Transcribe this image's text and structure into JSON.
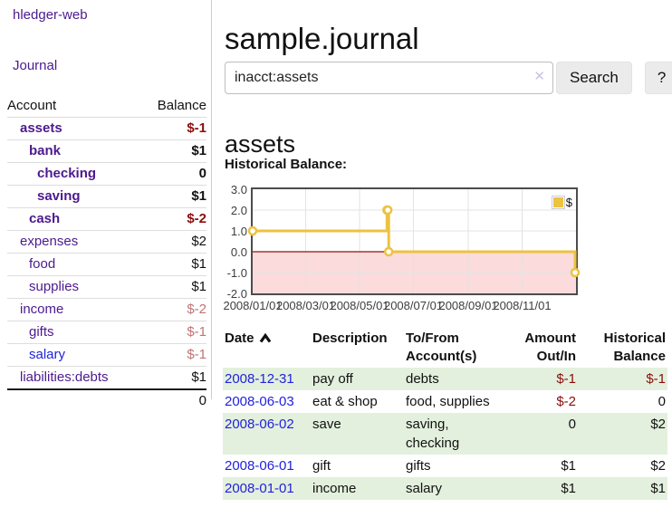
{
  "brand": "hledger-web",
  "nav": {
    "journal": "Journal"
  },
  "sidebar": {
    "header": {
      "account": "Account",
      "balance": "Balance"
    },
    "accounts": [
      {
        "name": "assets",
        "indent": 1,
        "bold": true,
        "balance": "$-1",
        "balClass": "neg"
      },
      {
        "name": "bank",
        "indent": 2,
        "bold": true,
        "balance": "$1",
        "balClass": ""
      },
      {
        "name": "checking",
        "indent": 3,
        "bold": true,
        "balance": "0",
        "balClass": ""
      },
      {
        "name": "saving",
        "indent": 3,
        "bold": true,
        "balance": "$1",
        "balClass": ""
      },
      {
        "name": "cash",
        "indent": 2,
        "bold": true,
        "balance": "$-2",
        "balClass": "neg"
      },
      {
        "name": "expenses",
        "indent": 1,
        "bold": false,
        "balance": "$2",
        "balClass": ""
      },
      {
        "name": "food",
        "indent": 2,
        "bold": false,
        "balance": "$1",
        "balClass": ""
      },
      {
        "name": "supplies",
        "indent": 2,
        "bold": false,
        "balance": "$1",
        "balClass": ""
      },
      {
        "name": "income",
        "indent": 1,
        "bold": false,
        "balance": "$-2",
        "balClass": "neg-soft"
      },
      {
        "name": "gifts",
        "indent": 2,
        "bold": false,
        "balance": "$-1",
        "balClass": "neg-soft"
      },
      {
        "name": "salary",
        "indent": 2,
        "bold": false,
        "balance": "$-1",
        "balClass": "neg-soft",
        "nameClass": "blue"
      },
      {
        "name": "liabilities:debts",
        "indent": 1,
        "bold": false,
        "balance": "$1",
        "balClass": ""
      }
    ],
    "total": "0"
  },
  "main": {
    "title": "sample.journal",
    "search": {
      "value": "inacct:assets",
      "clear": "✕",
      "button": "Search",
      "help": "?"
    },
    "heading": "assets",
    "chart_title": "Historical Balance:"
  },
  "chart_data": {
    "type": "line",
    "step": true,
    "title": "Historical Balance:",
    "legend": [
      {
        "label": "$",
        "color": "#edc240"
      }
    ],
    "legend_position": "top-right",
    "series": [
      {
        "name": "$",
        "color": "#edc240",
        "points": [
          [
            "2008-01-01",
            1
          ],
          [
            "2008-06-01",
            2
          ],
          [
            "2008-06-02",
            2
          ],
          [
            "2008-06-03",
            0
          ],
          [
            "2008-12-31",
            -1
          ]
        ]
      }
    ],
    "xlim": [
      "2008-01-01",
      "2009-01-01"
    ],
    "ylim": [
      -2,
      3
    ],
    "yticks": [
      {
        "value": 3,
        "label": "3.0"
      },
      {
        "value": 2,
        "label": "2.0"
      },
      {
        "value": 1,
        "label": "1.0"
      },
      {
        "value": 0,
        "label": "0.0"
      },
      {
        "value": -1,
        "label": "-1.0"
      },
      {
        "value": -2,
        "label": "-2.0"
      }
    ],
    "xticks": [
      {
        "value": "2008-01-01",
        "label": "2008/01/01"
      },
      {
        "value": "2008-03-01",
        "label": "2008/03/01"
      },
      {
        "value": "2008-05-01",
        "label": "2008/05/01"
      },
      {
        "value": "2008-07-01",
        "label": "2008/07/01"
      },
      {
        "value": "2008-09-01",
        "label": "2008/09/01"
      },
      {
        "value": "2008-11-01",
        "label": "2008/11/01"
      }
    ],
    "grid": true,
    "negative_fill": "#fbdbdb",
    "zero_line_color": "#8e1414"
  },
  "register": {
    "columns": [
      {
        "line1": "Date",
        "line2": ""
      },
      {
        "line1": "Description",
        "line2": ""
      },
      {
        "line1": "To/From",
        "line2": "Account(s)"
      },
      {
        "line1": "Amount",
        "line2": "Out/In"
      },
      {
        "line1": "Historical",
        "line2": "Balance"
      }
    ],
    "rows": [
      {
        "date": "2008-12-31",
        "description": "pay off",
        "accounts": "debts",
        "amount": "$-1",
        "amountClass": "neg",
        "balance": "$-1",
        "balanceClass": "neg"
      },
      {
        "date": "2008-06-03",
        "description": "eat & shop",
        "accounts": "food, supplies",
        "amount": "$-2",
        "amountClass": "neg",
        "balance": "0",
        "balanceClass": ""
      },
      {
        "date": "2008-06-02",
        "description": "save",
        "accounts": "saving, checking",
        "amount": "0",
        "amountClass": "",
        "balance": "$2",
        "balanceClass": ""
      },
      {
        "date": "2008-06-01",
        "description": "gift",
        "accounts": "gifts",
        "amount": "$1",
        "amountClass": "",
        "balance": "$2",
        "balanceClass": ""
      },
      {
        "date": "2008-01-01",
        "description": "income",
        "accounts": "salary",
        "amount": "$1",
        "amountClass": "",
        "balance": "$1",
        "balanceClass": ""
      }
    ]
  },
  "colors": {
    "purple": "#4c1a8e",
    "link_blue": "#2222dd",
    "negative_strong": "#8b0d0d",
    "negative_soft": "#c17474",
    "row_green": "#e3f0dd",
    "accent_yellow": "#edc240",
    "negative_region_pink": "#fbdbdb"
  }
}
